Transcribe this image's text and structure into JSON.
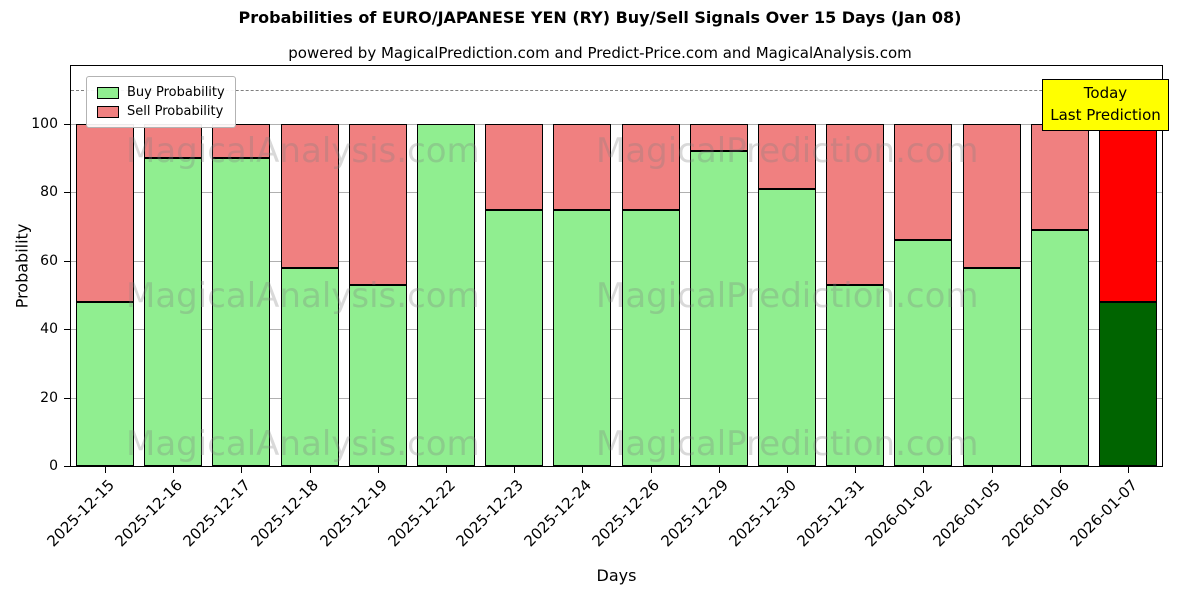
{
  "title": "Probabilities of EURO/JAPANESE YEN (RY) Buy/Sell Signals Over 15 Days (Jan 08)",
  "subtitle": "powered by MagicalPrediction.com and Predict-Price.com and MagicalAnalysis.com",
  "legend": {
    "buy_label": "Buy Probability",
    "sell_label": "Sell Probability"
  },
  "annotation": {
    "line1": "Today",
    "line2": "Last Prediction"
  },
  "watermarks": [
    "MagicalAnalysis.com",
    "MagicalPrediction.com"
  ],
  "colors": {
    "buy": "#90EE90",
    "sell": "#F08080",
    "today_buy": "#006400",
    "today_sell": "#FF0000",
    "annotation_bg": "#FFFF00",
    "grid": "#b0b0b0",
    "dashed_line": "#7f7f7f"
  },
  "chart_data": {
    "type": "bar",
    "stacked": true,
    "title": "Probabilities of EURO/JAPANESE YEN (RY) Buy/Sell Signals Over 15 Days (Jan 08)",
    "xlabel": "Days",
    "ylabel": "Probability",
    "ylim": [
      0,
      117
    ],
    "yticks": [
      0,
      20,
      40,
      60,
      80,
      100
    ],
    "dashed_line_y": 110,
    "grid": "horizontal",
    "legend_position": "upper left",
    "categories": [
      "2025-12-15",
      "2025-12-16",
      "2025-12-17",
      "2025-12-18",
      "2025-12-19",
      "2025-12-22",
      "2025-12-23",
      "2025-12-24",
      "2025-12-26",
      "2025-12-29",
      "2025-12-30",
      "2025-12-31",
      "2026-01-02",
      "2026-01-05",
      "2026-01-06",
      "2026-01-07"
    ],
    "series": [
      {
        "name": "Buy Probability",
        "values": [
          48,
          90,
          90,
          58,
          53,
          100,
          75,
          75,
          75,
          92,
          81,
          53,
          66,
          58,
          69,
          48
        ]
      },
      {
        "name": "Sell Probability",
        "values": [
          52,
          10,
          10,
          42,
          47,
          0,
          25,
          25,
          25,
          8,
          19,
          47,
          34,
          42,
          31,
          52
        ]
      }
    ],
    "today_index": 15
  }
}
